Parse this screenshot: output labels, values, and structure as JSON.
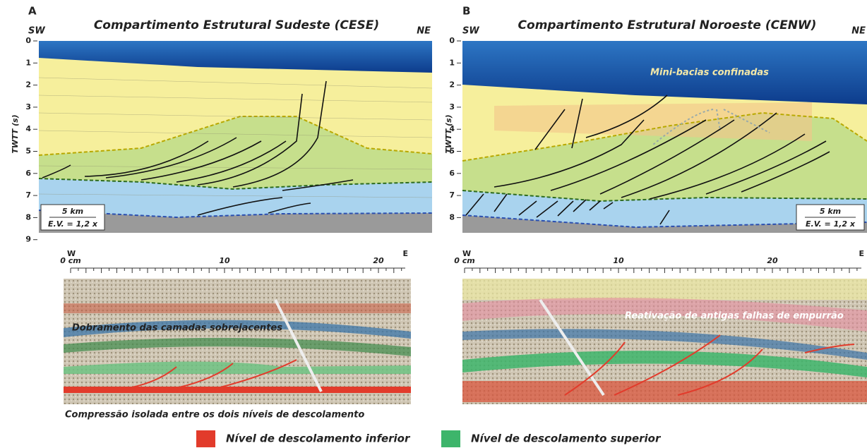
{
  "panels": [
    {
      "label": "A",
      "title": "Compartimento Estrutural Sudeste (CESE)",
      "left": "SW",
      "right": "NE",
      "axis_title": "TWTT (s)",
      "ticks": [
        0,
        1,
        2,
        3,
        4,
        5,
        6,
        7,
        8,
        9
      ],
      "scale": "5 km",
      "ev": "E.V. = 1,2 x",
      "model": {
        "left": "W",
        "right": "E",
        "ticks": [
          "0 cm",
          "10",
          "20"
        ],
        "annotations": [
          "Dobramento das camadas sobrejacentes",
          "Compressão isolada entre os dois níveis de descolamento"
        ]
      }
    },
    {
      "label": "B",
      "title": "Compartimento Estrutural Noroeste (CENW)",
      "left": "SW",
      "right": "NE",
      "axis_title": "TWTT (s)",
      "ticks": [
        0,
        1,
        2,
        3,
        4,
        5,
        6,
        7,
        8
      ],
      "scale": "5 km",
      "ev": "E.V. = 1,2 x",
      "annotation": "Mini-bacias confinadas",
      "model": {
        "left": "W",
        "right": "E",
        "ticks": [
          "0 cm",
          "10",
          "20"
        ],
        "annotations": [
          "Reativação de antigas falhas de empurrão"
        ]
      }
    }
  ],
  "legend": [
    {
      "label": "Nível de descolamento inferior",
      "color": "#e23b2b"
    },
    {
      "label": "Nível de descolamento superior",
      "color": "#3db56b"
    }
  ]
}
